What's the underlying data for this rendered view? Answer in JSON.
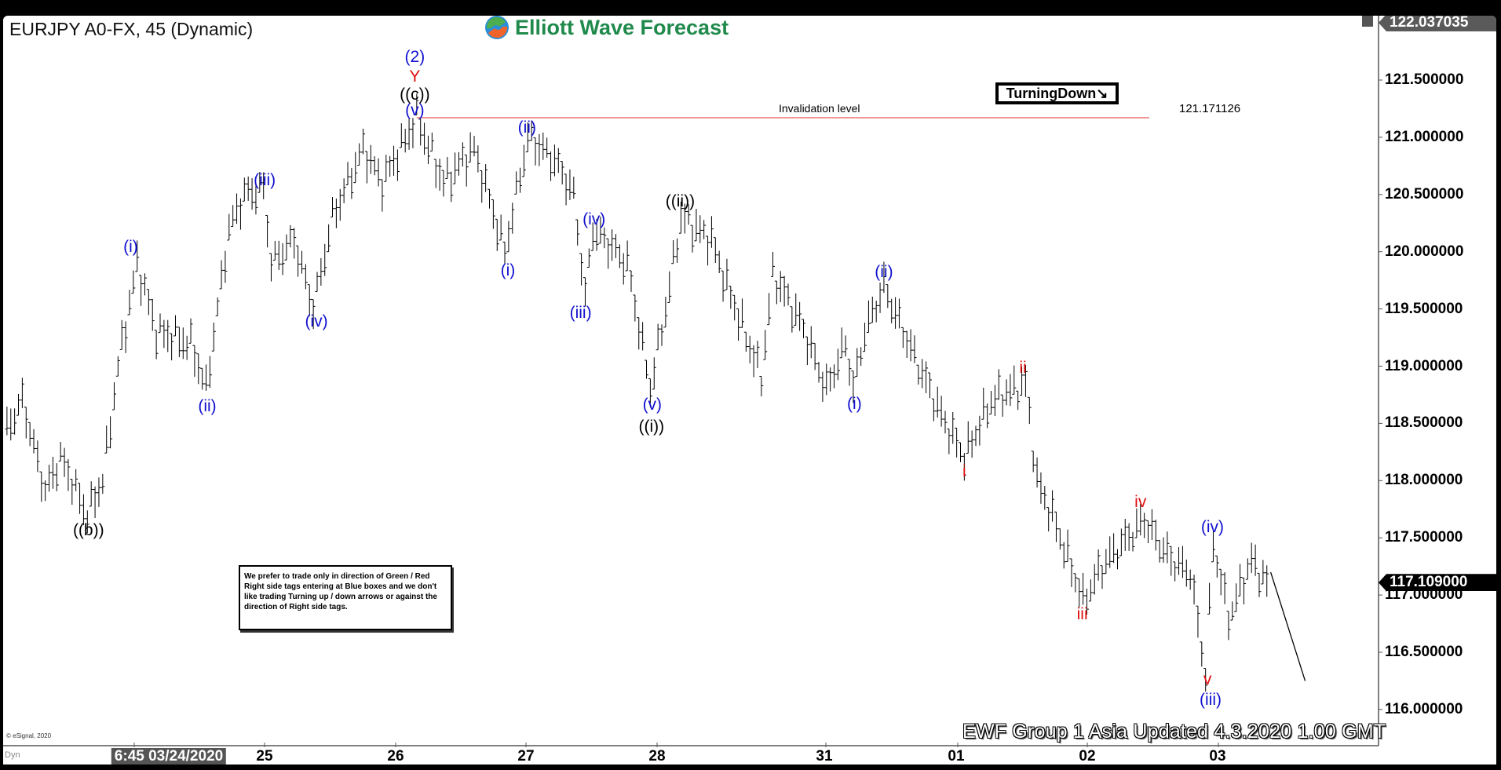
{
  "header": {
    "title": "EURJPY A0-FX, 45 (Dynamic)",
    "logo_text": "Elliott Wave Forecast"
  },
  "note": "We prefer to trade only in direction of Green / Red Right side tags entering at Blue boxes and we don't like trading Turning up / down arrows or against the direction of Right side tags.",
  "turning_tag": "TurningDown↘",
  "footer": "EWF Group 1 Asia  Updated 4.3.2020 1.00 GMT",
  "copyright": "© eSignal, 2020",
  "dyn_label": "Dyn",
  "colors": {
    "bars": "#000000",
    "invalidation": "#e03030",
    "blue_label": "#1010d0",
    "red_label": "#e01010",
    "black_label": "#000000",
    "last_price_tag": "#000000",
    "high_tag": "#5a5a5a"
  },
  "chart_data": {
    "type": "ohlc",
    "symbol": "EURJPY A0-FX",
    "interval": "45",
    "y_ticks": [
      "121.500000",
      "121.000000",
      "120.500000",
      "120.000000",
      "119.500000",
      "119.000000",
      "118.500000",
      "118.000000",
      "117.500000",
      "117.000000",
      "116.500000",
      "116.000000"
    ],
    "y_tick_values": [
      121.5,
      121.0,
      120.5,
      120.0,
      119.5,
      119.0,
      118.5,
      118.0,
      117.5,
      117.0,
      116.5,
      116.0
    ],
    "ylim": [
      115.7,
      122.1
    ],
    "x_ticks": [
      "6:45 03/24/2020",
      "25",
      "26",
      "27",
      "28",
      "31",
      "01",
      "02",
      "03"
    ],
    "high_price_tag": "122.037035",
    "last_price": "117.109000",
    "invalidation": {
      "label": "Invalidation level",
      "value": "121.171126",
      "price": 121.171126
    },
    "price_path_pivots": [
      [
        1,
        118.45
      ],
      [
        5,
        118.7
      ],
      [
        11,
        117.9
      ],
      [
        15,
        118.2
      ],
      [
        22,
        117.7
      ],
      [
        26,
        118.0
      ],
      [
        30,
        119.0
      ],
      [
        35,
        119.9
      ],
      [
        40,
        119.3
      ],
      [
        49,
        119.2
      ],
      [
        53,
        118.8
      ],
      [
        59,
        120.2
      ],
      [
        63,
        120.5
      ],
      [
        68,
        120.55
      ],
      [
        70,
        119.9
      ],
      [
        76,
        120.1
      ],
      [
        81,
        119.5
      ],
      [
        86,
        120.3
      ],
      [
        94,
        120.9
      ],
      [
        99,
        120.6
      ],
      [
        108,
        121.17
      ],
      [
        115,
        120.6
      ],
      [
        123,
        120.9
      ],
      [
        131,
        120.0
      ],
      [
        137,
        121.0
      ],
      [
        144,
        120.8
      ],
      [
        149,
        120.5
      ],
      [
        152,
        119.6
      ],
      [
        154,
        120.2
      ],
      [
        163,
        119.9
      ],
      [
        169,
        118.8
      ],
      [
        173,
        119.5
      ],
      [
        177,
        120.3
      ],
      [
        185,
        120.1
      ],
      [
        189,
        119.7
      ],
      [
        198,
        118.9
      ],
      [
        201,
        119.8
      ],
      [
        208,
        119.4
      ],
      [
        215,
        118.8
      ],
      [
        220,
        119.2
      ],
      [
        222,
        118.8
      ],
      [
        225,
        119.3
      ],
      [
        230,
        119.7
      ],
      [
        235,
        119.3
      ],
      [
        246,
        118.5
      ],
      [
        251,
        118.2
      ],
      [
        258,
        118.7
      ],
      [
        267,
        118.85
      ],
      [
        270,
        118.0
      ],
      [
        275,
        117.6
      ],
      [
        282,
        116.95
      ],
      [
        288,
        117.3
      ],
      [
        298,
        117.65
      ],
      [
        305,
        117.3
      ],
      [
        310,
        117.2
      ],
      [
        314,
        116.3
      ],
      [
        316,
        117.45
      ],
      [
        320,
        116.8
      ],
      [
        326,
        117.3
      ],
      [
        330,
        117.1
      ]
    ],
    "projection": [
      [
        331,
        117.2
      ],
      [
        340,
        116.25
      ]
    ],
    "wave_labels": [
      {
        "text": "(2)",
        "color": "blue",
        "bar": 107.5,
        "price": 121.7
      },
      {
        "text": "Y",
        "color": "red",
        "bar": 107.5,
        "price": 121.53
      },
      {
        "text": "((c))",
        "color": "black",
        "bar": 107.5,
        "price": 121.37
      },
      {
        "text": "(v)",
        "color": "blue",
        "bar": 107.5,
        "price": 121.23
      },
      {
        "text": "(i)",
        "color": "blue",
        "bar": 33.3,
        "price": 120.04
      },
      {
        "text": "(ii)",
        "color": "blue",
        "bar": 53.3,
        "price": 118.65
      },
      {
        "text": "(iii)",
        "color": "blue",
        "bar": 68.3,
        "price": 120.62
      },
      {
        "text": "(iv)",
        "color": "blue",
        "bar": 81.8,
        "price": 119.39
      },
      {
        "text": "((b))",
        "color": "black",
        "bar": 22.3,
        "price": 117.56
      },
      {
        "text": "(ii)",
        "color": "blue",
        "bar": 136.8,
        "price": 121.08
      },
      {
        "text": "(i)",
        "color": "blue",
        "bar": 131.8,
        "price": 119.83
      },
      {
        "text": "(iv)",
        "color": "blue",
        "bar": 154.3,
        "price": 120.28
      },
      {
        "text": "(iii)",
        "color": "blue",
        "bar": 150.8,
        "price": 119.46
      },
      {
        "text": "((ii))",
        "color": "black",
        "bar": 176.8,
        "price": 120.44
      },
      {
        "text": "(v)",
        "color": "blue",
        "bar": 169.5,
        "price": 118.66
      },
      {
        "text": "((i))",
        "color": "black",
        "bar": 169.3,
        "price": 118.47
      },
      {
        "text": "(ii)",
        "color": "blue",
        "bar": 230,
        "price": 119.82
      },
      {
        "text": "(i)",
        "color": "blue",
        "bar": 222.3,
        "price": 118.67
      },
      {
        "text": "ii",
        "color": "red",
        "bar": 266.3,
        "price": 118.98
      },
      {
        "text": "i",
        "color": "red",
        "bar": 251,
        "price": 118.08
      },
      {
        "text": "iv",
        "color": "red",
        "bar": 297,
        "price": 117.81
      },
      {
        "text": "iii",
        "color": "red",
        "bar": 281.8,
        "price": 116.83
      },
      {
        "text": "(iv)",
        "color": "blue",
        "bar": 315.8,
        "price": 117.59
      },
      {
        "text": "v",
        "color": "red",
        "bar": 314.5,
        "price": 116.26
      },
      {
        "text": "(iii)",
        "color": "blue",
        "bar": 315.3,
        "price": 116.08
      }
    ]
  }
}
